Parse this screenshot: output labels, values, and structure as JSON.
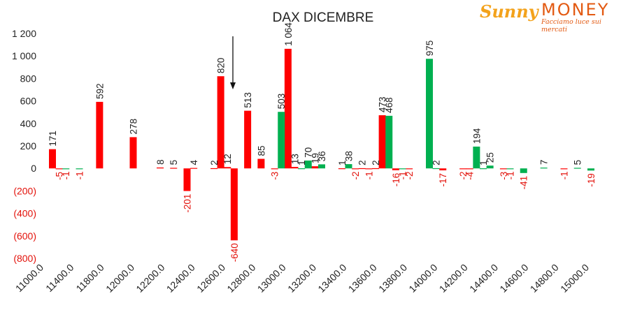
{
  "chart_data": {
    "type": "bar",
    "title": "DAX DICEMBRE",
    "ylim": [
      -800,
      1200
    ],
    "y_ticks": [
      "1 200",
      "1 000",
      "800",
      "600",
      "400",
      "200",
      "0",
      "(200)",
      "(400)",
      "(600)",
      "(800)"
    ],
    "x_ticks": [
      "11000.0",
      "11400.0",
      "11800.0",
      "12000.0",
      "12200.0",
      "12400.0",
      "12600.0",
      "12800.0",
      "13000.0",
      "13200.0",
      "13400.0",
      "13600.0",
      "13800.0",
      "14000.0",
      "14200.0",
      "14400.0",
      "14600.0",
      "14800.0",
      "15000.0"
    ],
    "colors": {
      "red": "#ff0000",
      "green": "#00b050"
    },
    "series": [
      {
        "color_key": "red",
        "values": [
          {
            "x": 11000,
            "y": 171,
            "label": "171"
          },
          {
            "x": 11050,
            "y": -5,
            "label": "-5"
          },
          {
            "x": 11350,
            "y": 592,
            "label": "592"
          },
          {
            "x": 11600,
            "y": 278,
            "label": "278"
          },
          {
            "x": 11800,
            "y": 8,
            "label": "8"
          },
          {
            "x": 11900,
            "y": 5,
            "label": "5"
          },
          {
            "x": 12000,
            "y": -201,
            "label": "-201"
          },
          {
            "x": 12050,
            "y": 4,
            "label": "4"
          },
          {
            "x": 12200,
            "y": 2,
            "label": "2"
          },
          {
            "x": 12250,
            "y": 820,
            "label": "820"
          },
          {
            "x": 12300,
            "y": 12,
            "label": "12"
          },
          {
            "x": 12350,
            "y": -640,
            "label": "-640"
          },
          {
            "x": 12450,
            "y": 513,
            "label": "513"
          },
          {
            "x": 12550,
            "y": 85,
            "label": "85"
          },
          {
            "x": 12650,
            "y": -3,
            "label": "-3"
          },
          {
            "x": 12750,
            "y": 1064,
            "label": "1 064"
          },
          {
            "x": 12800,
            "y": 13,
            "label": "13"
          },
          {
            "x": 12950,
            "y": 19,
            "label": "19"
          },
          {
            "x": 13150,
            "y": 1,
            "label": "1"
          },
          {
            "x": 13250,
            "y": -2,
            "label": "-2"
          },
          {
            "x": 13300,
            "y": 2,
            "label": "2"
          },
          {
            "x": 13350,
            "y": -1,
            "label": "-1"
          },
          {
            "x": 13400,
            "y": 2,
            "label": "2"
          },
          {
            "x": 13450,
            "y": 473,
            "label": "473"
          },
          {
            "x": 13550,
            "y": -16,
            "label": "-16"
          },
          {
            "x": 13650,
            "y": -2,
            "label": "-2"
          },
          {
            "x": 13900,
            "y": -17,
            "label": "-17"
          },
          {
            "x": 14050,
            "y": -2,
            "label": "-2"
          },
          {
            "x": 14100,
            "y": -4,
            "label": "-4"
          },
          {
            "x": 14350,
            "y": -3,
            "label": "-3"
          },
          {
            "x": 14800,
            "y": -1,
            "label": "-1"
          }
        ]
      },
      {
        "color_key": "green",
        "values": [
          {
            "x": 11100,
            "y": -1,
            "label": "-1"
          },
          {
            "x": 11200,
            "y": -1,
            "label": "-1"
          },
          {
            "x": 12700,
            "y": 503,
            "label": "503"
          },
          {
            "x": 12850,
            "y": 1,
            "label": "1"
          },
          {
            "x": 12900,
            "y": 70,
            "label": "70"
          },
          {
            "x": 13000,
            "y": 36,
            "label": "36"
          },
          {
            "x": 13200,
            "y": 38,
            "label": "38"
          },
          {
            "x": 13500,
            "y": 468,
            "label": "468"
          },
          {
            "x": 13600,
            "y": -1,
            "label": "-1"
          },
          {
            "x": 13800,
            "y": 975,
            "label": "975"
          },
          {
            "x": 13850,
            "y": 2,
            "label": "2"
          },
          {
            "x": 14150,
            "y": 194,
            "label": "194"
          },
          {
            "x": 14200,
            "y": 1,
            "label": "1"
          },
          {
            "x": 14250,
            "y": 25,
            "label": "25"
          },
          {
            "x": 14400,
            "y": -1,
            "label": "-1"
          },
          {
            "x": 14500,
            "y": -41,
            "label": "-41"
          },
          {
            "x": 14650,
            "y": 7,
            "label": "7"
          },
          {
            "x": 14900,
            "y": 5,
            "label": "5"
          },
          {
            "x": 15000,
            "y": -19,
            "label": "-19"
          }
        ]
      }
    ]
  },
  "logo": {
    "brand_a": "Sunny",
    "brand_b": "MONEY",
    "tagline": "Facciamo luce sui mercati"
  }
}
